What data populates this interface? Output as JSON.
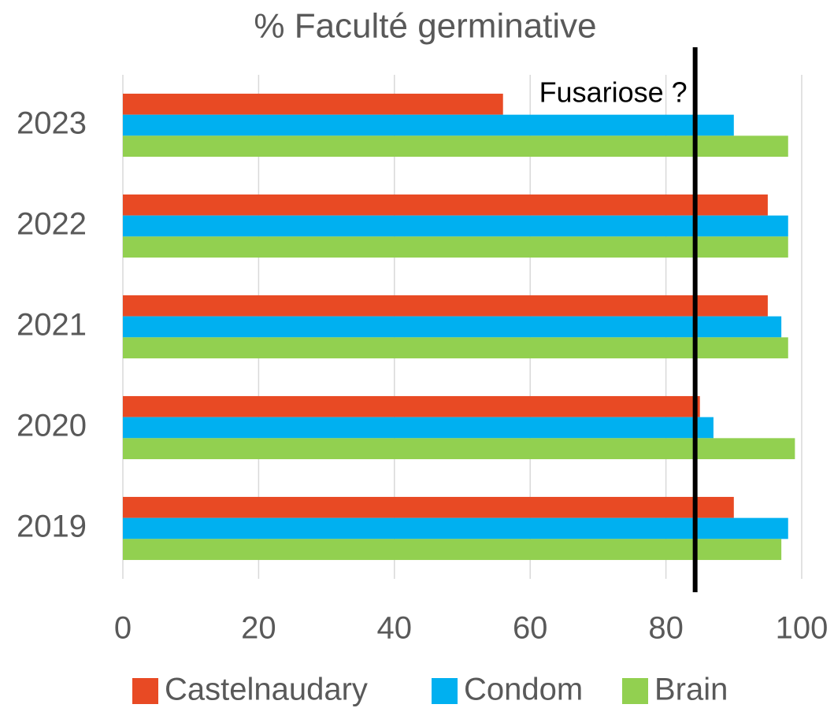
{
  "chart_data": {
    "type": "bar",
    "orientation": "horizontal",
    "title": "% Faculté germinative",
    "categories": [
      "2019",
      "2020",
      "2021",
      "2022",
      "2023"
    ],
    "series": [
      {
        "name": "Castelnaudary",
        "color": "#e84a24",
        "values": [
          90,
          85,
          95,
          95,
          56
        ]
      },
      {
        "name": "Condom",
        "color": "#00b0f0",
        "values": [
          98,
          87,
          97,
          98,
          90
        ]
      },
      {
        "name": "Brain",
        "color": "#92d050",
        "values": [
          97,
          99,
          98,
          98,
          98
        ]
      }
    ],
    "xlim": [
      0,
      100
    ],
    "xticks": [
      0,
      20,
      40,
      60,
      80,
      100
    ],
    "grid": true,
    "legend": "bottom",
    "reference_line": {
      "value": 84.3,
      "label": "Fusariose ?"
    }
  }
}
